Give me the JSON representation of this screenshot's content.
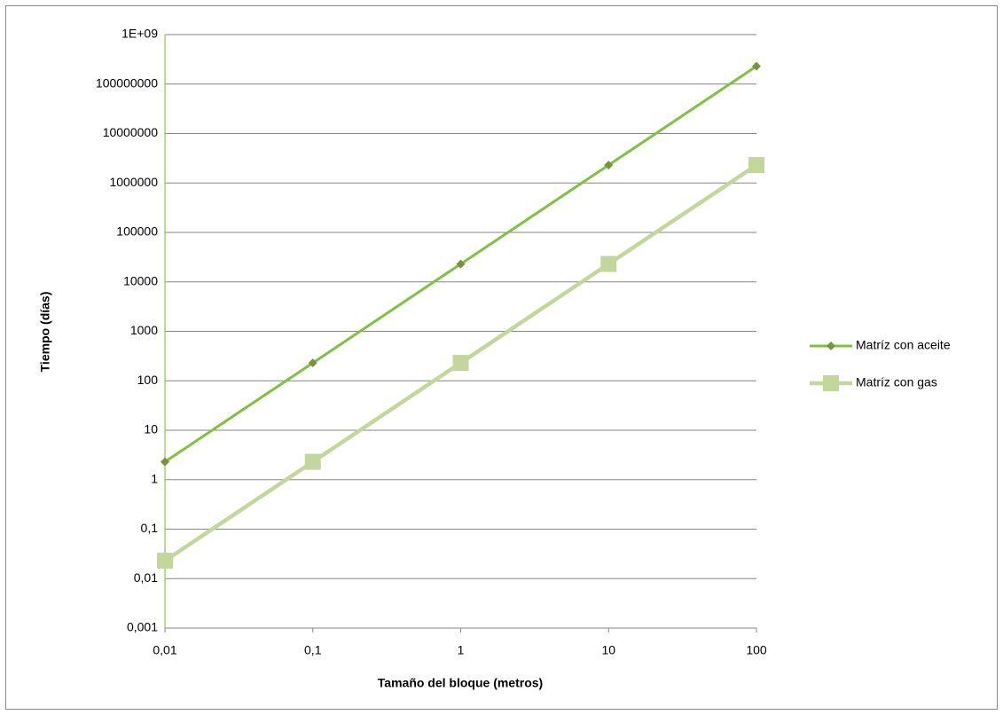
{
  "chart_data": {
    "type": "line",
    "x_label": "Tamaño del bloque (metros)",
    "y_label": "Tiempo (días)",
    "x": [
      0.01,
      0.1,
      1,
      10,
      100
    ],
    "series": [
      {
        "name": "Matríz con aceite",
        "color": "#7dc242",
        "marker": "diamond",
        "marker_color": "#77933c",
        "values": [
          2.3,
          230,
          23000,
          2300000,
          230000000
        ]
      },
      {
        "name": "Matríz con gas",
        "color": "#c3d69b",
        "marker": "square",
        "marker_color": "#c3d69b",
        "values": [
          0.023,
          2.3,
          230,
          23000,
          2300000
        ]
      }
    ],
    "xlim": [
      0.01,
      100
    ],
    "xticks": [
      {
        "value": 0.01,
        "label": "0,01"
      },
      {
        "value": 0.1,
        "label": "0,1"
      },
      1,
      10,
      100
    ],
    "ylim": [
      0.001,
      1000000000
    ],
    "yticks": [
      {
        "value": 0.001,
        "label": "0,001"
      },
      {
        "value": 0.01,
        "label": "0,01"
      },
      {
        "value": 0.1,
        "label": "0,1"
      },
      1,
      10,
      100,
      1000,
      10000,
      100000,
      1000000,
      10000000,
      100000000,
      {
        "value": 1000000000,
        "label": "1E+09"
      }
    ],
    "log_x": true,
    "log_y": true,
    "grid": true,
    "legend": "right"
  }
}
